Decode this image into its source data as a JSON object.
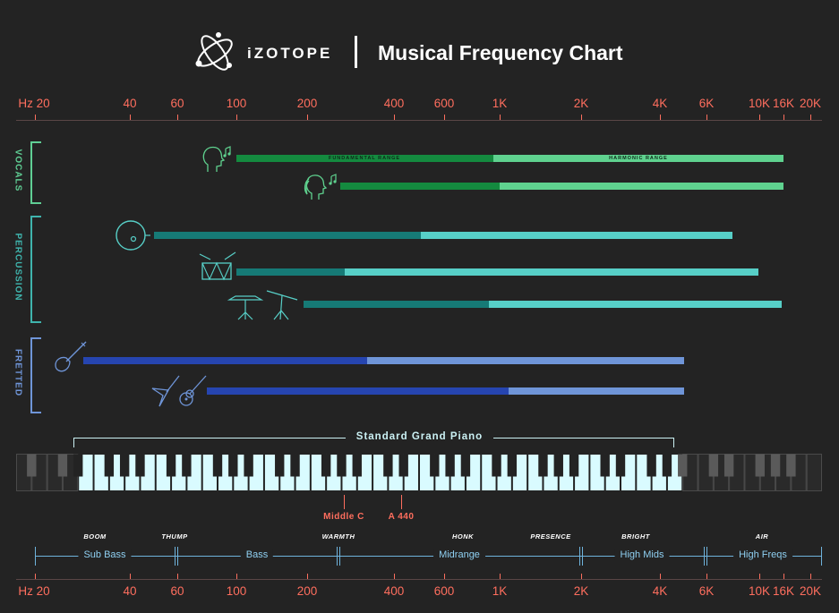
{
  "header": {
    "brand": "iZOTOPE",
    "title": "Musical Frequency Chart"
  },
  "axis": {
    "ticks": [
      "Hz 20",
      "40",
      "60",
      "100",
      "200",
      "400",
      "600",
      "1K",
      "2K",
      "4K",
      "6K",
      "10K",
      "16K",
      "20K"
    ],
    "color": "#ff6e5e"
  },
  "categories": [
    {
      "name": "VOCALS",
      "color": "#5fce94"
    },
    {
      "name": "PERCUSSION",
      "color": "#3fb4ad"
    },
    {
      "name": "FRETTED",
      "color": "#6f95d8"
    }
  ],
  "instruments": [
    {
      "icon": "male-voice-icon",
      "fundamental_label": "FUNDAMENTAL RANGE",
      "harmonic_label": "HARMONIC RANGE",
      "fund_color": "#148a3f",
      "harm_color": "#5fd28f"
    },
    {
      "icon": "female-voice-icon",
      "fund_color": "#148a3f",
      "harm_color": "#5fd28f"
    },
    {
      "icon": "kick-drum-icon",
      "fund_color": "#167a76",
      "harm_color": "#57cfc7"
    },
    {
      "icon": "snare-drum-icon",
      "fund_color": "#167a76",
      "harm_color": "#57cfc7"
    },
    {
      "icon": "cymbals-icon",
      "fund_color": "#167a76",
      "harm_color": "#57cfc7"
    },
    {
      "icon": "bass-guitar-icon",
      "fund_color": "#2645b0",
      "harm_color": "#6f95d8"
    },
    {
      "icon": "guitar-icon",
      "fund_color": "#2645b0",
      "harm_color": "#6f95d8"
    }
  ],
  "piano": {
    "label": "Standard Grand Piano",
    "middle_c": "Middle C",
    "a440": "A 440"
  },
  "bands": [
    {
      "nickname": "BOOM",
      "name": "Sub Bass"
    },
    {
      "nickname": "THUMP",
      "name": ""
    },
    {
      "nickname": "",
      "name": "Bass"
    },
    {
      "nickname": "WARMTH",
      "name": ""
    },
    {
      "nickname": "HONK",
      "name": "Midrange"
    },
    {
      "nickname": "PRESENCE",
      "name": ""
    },
    {
      "nickname": "BRIGHT",
      "name": "High Mids"
    },
    {
      "nickname": "AIR",
      "name": "High Freqs"
    }
  ]
}
